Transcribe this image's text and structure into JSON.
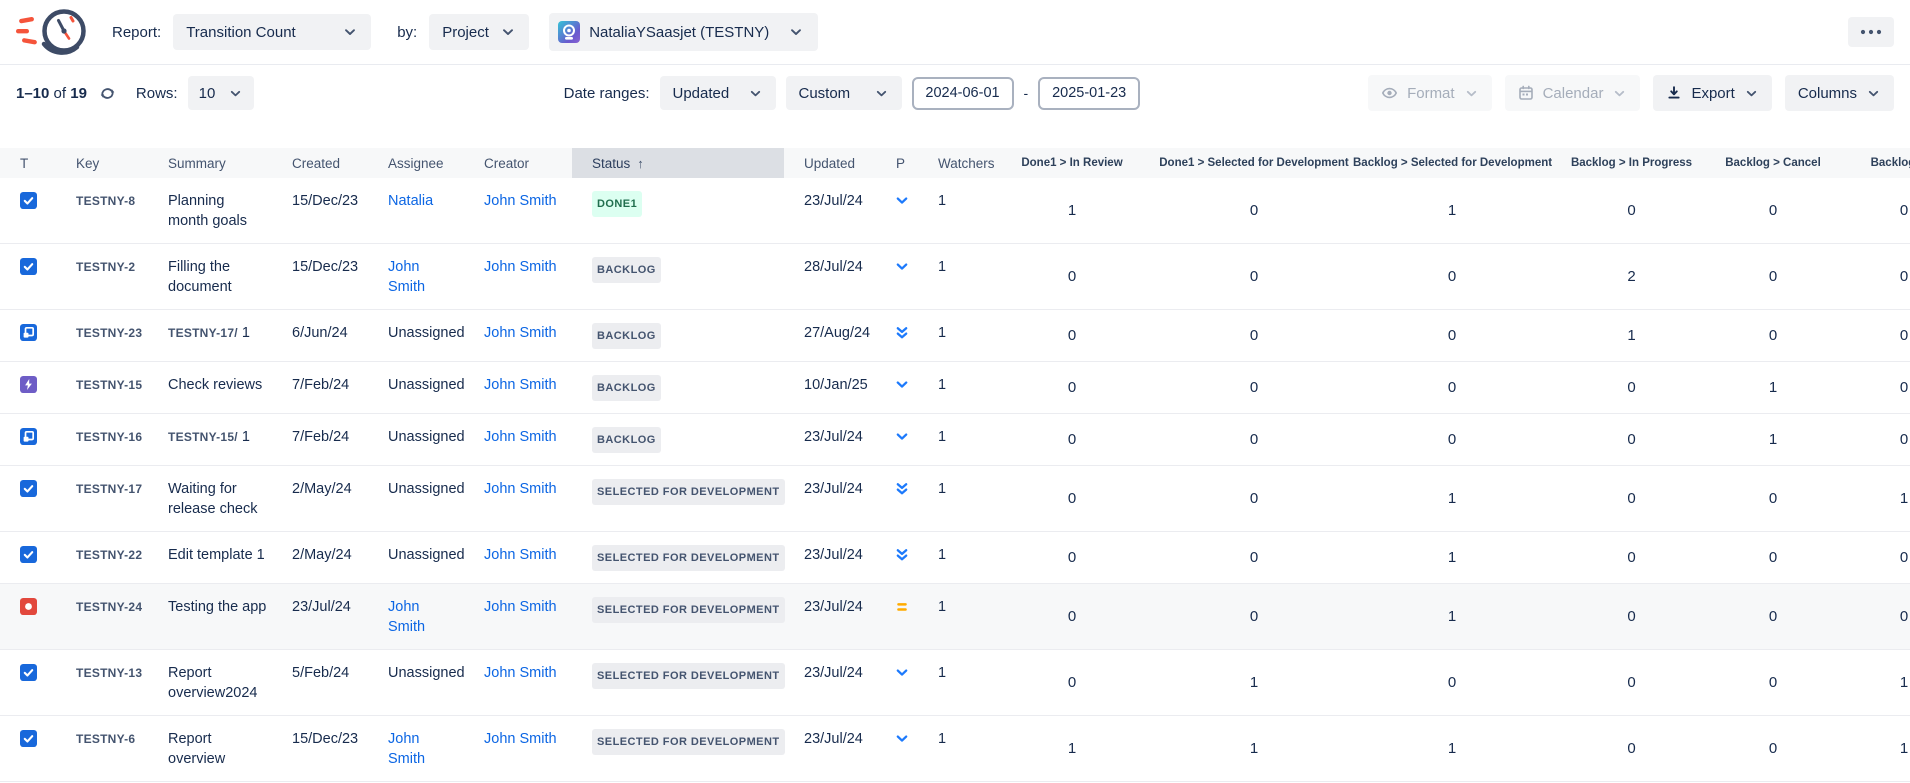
{
  "colors": {
    "link": "#0C66E4",
    "header_text": "#44546F",
    "body_text": "#172B4D",
    "sorted_column_bg": "#DCDFE4",
    "header_row_bg": "#F7F8F9",
    "row_highlight_bg": "#F7F8F9",
    "success_badge_bg": "#DCFFF1",
    "success_badge_text": "#216E4E",
    "neutral_badge_bg": "#ECEDF0",
    "neutral_badge_text": "#44546F",
    "priority_low": "#1D7AFC",
    "priority_medium": "#FFAB00",
    "type_task": "#1868DB",
    "type_subtask": "#1868DB",
    "type_bolt": "#6E5DC6",
    "type_bug": "#E2483D",
    "logo_navy": "#3D4B66",
    "logo_orange": "#F5543B"
  },
  "icons": {
    "logo": "speeding-clock-logo",
    "more": "meatball-menu-icon",
    "refresh": "refresh-icon",
    "format": "eye-icon",
    "calendar": "calendar-icon",
    "export": "download-icon",
    "dropdown": "chevron-down-icon"
  },
  "toolbar": {
    "report_label": "Report:",
    "report_value": "Transition Count",
    "by_label": "by:",
    "by_value": "Project",
    "project_value": "NataliaYSaasjet (TESTNY)"
  },
  "controls": {
    "pagination": {
      "range": "1–10",
      "of": "of",
      "total": "19"
    },
    "rows_label": "Rows:",
    "rows_value": "10",
    "date_ranges_label": "Date ranges:",
    "date_field_value": "Updated",
    "date_mode_value": "Custom",
    "date_from": "2024-06-01",
    "date_separator": "-",
    "date_to": "2025-01-23",
    "format_label": "Format",
    "calendar_label": "Calendar",
    "export_label": "Export",
    "columns_label": "Columns"
  },
  "table": {
    "sort_arrow": "↑",
    "columns": [
      {
        "label": "T",
        "kind": "type"
      },
      {
        "label": "Key",
        "kind": "key"
      },
      {
        "label": "Summary",
        "kind": "summary"
      },
      {
        "label": "Created",
        "kind": "text"
      },
      {
        "label": "Assignee",
        "kind": "person"
      },
      {
        "label": "Creator",
        "kind": "person"
      },
      {
        "label": "Status",
        "kind": "status",
        "sorted": true
      },
      {
        "label": "Updated",
        "kind": "text"
      },
      {
        "label": "P",
        "kind": "priority"
      },
      {
        "label": "Watchers",
        "kind": "text"
      },
      {
        "label": "Done1 > In Review",
        "kind": "num"
      },
      {
        "label": "Done1 > Selected for Development",
        "kind": "num"
      },
      {
        "label": "Backlog > Selected for Development",
        "kind": "num"
      },
      {
        "label": "Backlog > In Progress",
        "kind": "num"
      },
      {
        "label": "Backlog > Cancel",
        "kind": "num"
      },
      {
        "label": "Backlog > O",
        "kind": "num"
      }
    ],
    "rows": [
      {
        "type": "task",
        "key": "TESTNY-8",
        "summary_prefix": "",
        "summary": "Planning month goals",
        "created": "15/Dec/23",
        "assignee": "Natalia",
        "assignee_link": true,
        "creator": "John Smith",
        "status": "DONE1",
        "status_variant": "success",
        "updated": "23/Jul/24",
        "priority": "low",
        "watchers": "1",
        "transitions": [
          "1",
          "0",
          "1",
          "0",
          "0",
          "0"
        ],
        "highlighted": false
      },
      {
        "type": "task",
        "key": "TESTNY-2",
        "summary_prefix": "",
        "summary": "Filling the document",
        "created": "15/Dec/23",
        "assignee": "John Smith",
        "assignee_link": true,
        "creator": "John Smith",
        "status": "BACKLOG",
        "status_variant": "neutral",
        "updated": "28/Jul/24",
        "priority": "low",
        "watchers": "1",
        "transitions": [
          "0",
          "0",
          "0",
          "2",
          "0",
          "0"
        ],
        "highlighted": false
      },
      {
        "type": "subtask",
        "key": "TESTNY-23",
        "summary_prefix": "TESTNY-17/",
        "summary": " 1",
        "created": "6/Jun/24",
        "assignee": "Unassigned",
        "assignee_link": false,
        "creator": "John Smith",
        "status": "BACKLOG",
        "status_variant": "neutral",
        "updated": "27/Aug/24",
        "priority": "lowest",
        "watchers": "1",
        "transitions": [
          "0",
          "0",
          "0",
          "1",
          "0",
          "0"
        ],
        "highlighted": false
      },
      {
        "type": "bolt",
        "key": "TESTNY-15",
        "summary_prefix": "",
        "summary": "Check reviews",
        "created": "7/Feb/24",
        "assignee": "Unassigned",
        "assignee_link": false,
        "creator": "John Smith",
        "status": "BACKLOG",
        "status_variant": "neutral",
        "updated": "10/Jan/25",
        "priority": "low",
        "watchers": "1",
        "transitions": [
          "0",
          "0",
          "0",
          "0",
          "1",
          "0"
        ],
        "highlighted": false
      },
      {
        "type": "subtask",
        "key": "TESTNY-16",
        "summary_prefix": "TESTNY-15/",
        "summary": " 1",
        "created": "7/Feb/24",
        "assignee": "Unassigned",
        "assignee_link": false,
        "creator": "John Smith",
        "status": "BACKLOG",
        "status_variant": "neutral",
        "updated": "23/Jul/24",
        "priority": "low",
        "watchers": "1",
        "transitions": [
          "0",
          "0",
          "0",
          "0",
          "1",
          "0"
        ],
        "highlighted": false
      },
      {
        "type": "task",
        "key": "TESTNY-17",
        "summary_prefix": "",
        "summary": "Waiting for release check",
        "created": "2/May/24",
        "assignee": "Unassigned",
        "assignee_link": false,
        "creator": "John Smith",
        "status": "SELECTED FOR DEVELOPMENT",
        "status_variant": "neutral",
        "updated": "23/Jul/24",
        "priority": "lowest",
        "watchers": "1",
        "transitions": [
          "0",
          "0",
          "1",
          "0",
          "0",
          "1"
        ],
        "highlighted": false
      },
      {
        "type": "task",
        "key": "TESTNY-22",
        "summary_prefix": "",
        "summary": "Edit template 1",
        "created": "2/May/24",
        "assignee": "Unassigned",
        "assignee_link": false,
        "creator": "John Smith",
        "status": "SELECTED FOR DEVELOPMENT",
        "status_variant": "neutral",
        "updated": "23/Jul/24",
        "priority": "lowest",
        "watchers": "1",
        "transitions": [
          "0",
          "0",
          "1",
          "0",
          "0",
          "0"
        ],
        "highlighted": false
      },
      {
        "type": "bug",
        "key": "TESTNY-24",
        "summary_prefix": "",
        "summary": "Testing the app",
        "created": "23/Jul/24",
        "assignee": "John Smith",
        "assignee_link": true,
        "creator": "John Smith",
        "status": "SELECTED FOR DEVELOPMENT",
        "status_variant": "neutral",
        "updated": "23/Jul/24",
        "priority": "medium",
        "watchers": "1",
        "transitions": [
          "0",
          "0",
          "1",
          "0",
          "0",
          "0"
        ],
        "highlighted": true
      },
      {
        "type": "task",
        "key": "TESTNY-13",
        "summary_prefix": "",
        "summary": "Report overview2024",
        "created": "5/Feb/24",
        "assignee": "Unassigned",
        "assignee_link": false,
        "creator": "John Smith",
        "status": "SELECTED FOR DEVELOPMENT",
        "status_variant": "neutral",
        "updated": "23/Jul/24",
        "priority": "low",
        "watchers": "1",
        "transitions": [
          "0",
          "1",
          "0",
          "0",
          "0",
          "1"
        ],
        "highlighted": false
      },
      {
        "type": "task",
        "key": "TESTNY-6",
        "summary_prefix": "",
        "summary": "Report overview",
        "created": "15/Dec/23",
        "assignee": "John Smith",
        "assignee_link": true,
        "creator": "John Smith",
        "status": "SELECTED FOR DEVELOPMENT",
        "status_variant": "neutral",
        "updated": "23/Jul/24",
        "priority": "low",
        "watchers": "1",
        "transitions": [
          "1",
          "1",
          "1",
          "0",
          "0",
          "1"
        ],
        "highlighted": false
      }
    ]
  }
}
